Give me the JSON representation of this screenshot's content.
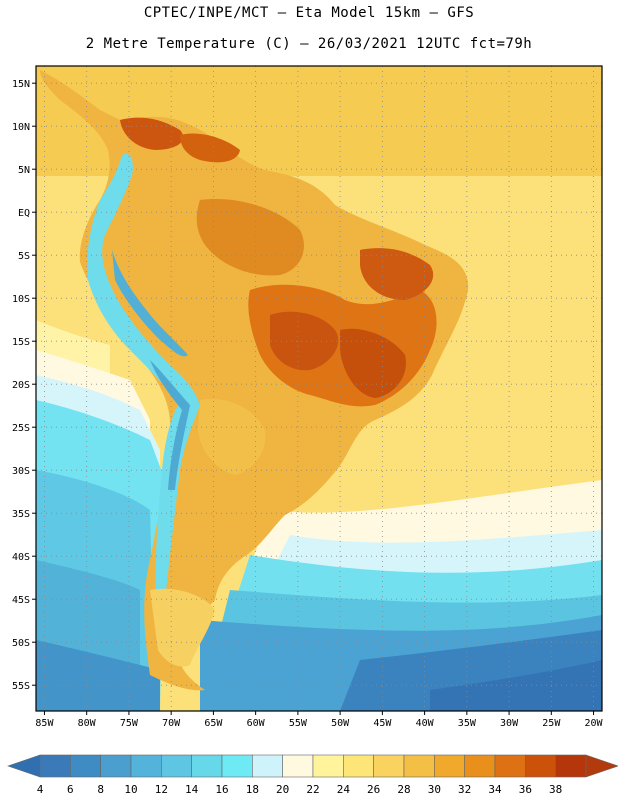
{
  "header": {
    "line1": "CPTEC/INPE/MCT –  Eta Model 15km – GFS",
    "line2": "2 Metre Temperature (C) – 26/03/2021 12UTC fct=79h"
  },
  "map": {
    "lon_range": [
      -86,
      -19
    ],
    "lat_range": [
      -58,
      17
    ],
    "lat_ticks": [
      {
        "value": 15,
        "label": "15N"
      },
      {
        "value": 10,
        "label": "10N"
      },
      {
        "value": 5,
        "label": "5N"
      },
      {
        "value": 0,
        "label": "EQ"
      },
      {
        "value": -5,
        "label": "5S"
      },
      {
        "value": -10,
        "label": "10S"
      },
      {
        "value": -15,
        "label": "15S"
      },
      {
        "value": -20,
        "label": "20S"
      },
      {
        "value": -25,
        "label": "25S"
      },
      {
        "value": -30,
        "label": "30S"
      },
      {
        "value": -35,
        "label": "35S"
      },
      {
        "value": -40,
        "label": "40S"
      },
      {
        "value": -45,
        "label": "45S"
      },
      {
        "value": -50,
        "label": "50S"
      },
      {
        "value": -55,
        "label": "55S"
      }
    ],
    "lon_ticks": [
      {
        "value": -85,
        "label": "85W"
      },
      {
        "value": -80,
        "label": "80W"
      },
      {
        "value": -75,
        "label": "75W"
      },
      {
        "value": -70,
        "label": "70W"
      },
      {
        "value": -65,
        "label": "65W"
      },
      {
        "value": -60,
        "label": "60W"
      },
      {
        "value": -55,
        "label": "55W"
      },
      {
        "value": -50,
        "label": "50W"
      },
      {
        "value": -45,
        "label": "45W"
      },
      {
        "value": -40,
        "label": "40W"
      },
      {
        "value": -35,
        "label": "35W"
      },
      {
        "value": -30,
        "label": "30W"
      },
      {
        "value": -25,
        "label": "25W"
      },
      {
        "value": -20,
        "label": "20W"
      }
    ],
    "grid": "dotted"
  },
  "colorbar": {
    "labels": [
      "4",
      "6",
      "8",
      "10",
      "12",
      "14",
      "16",
      "18",
      "20",
      "22",
      "24",
      "26",
      "28",
      "30",
      "32",
      "34",
      "36",
      "38"
    ],
    "colors": [
      "#3a7ab8",
      "#3f8bc4",
      "#4a9fcf",
      "#54b3da",
      "#5ec6e2",
      "#66d8ea",
      "#6eeaf4",
      "#cff3fb",
      "#fff9e0",
      "#fff49c",
      "#fde577",
      "#f9d260",
      "#f3bf45",
      "#f0a92a",
      "#e98f1c",
      "#de7114",
      "#cc520a",
      "#b5360a"
    ],
    "low_color": "#3170b0",
    "high_color": "#b33a0c"
  }
}
